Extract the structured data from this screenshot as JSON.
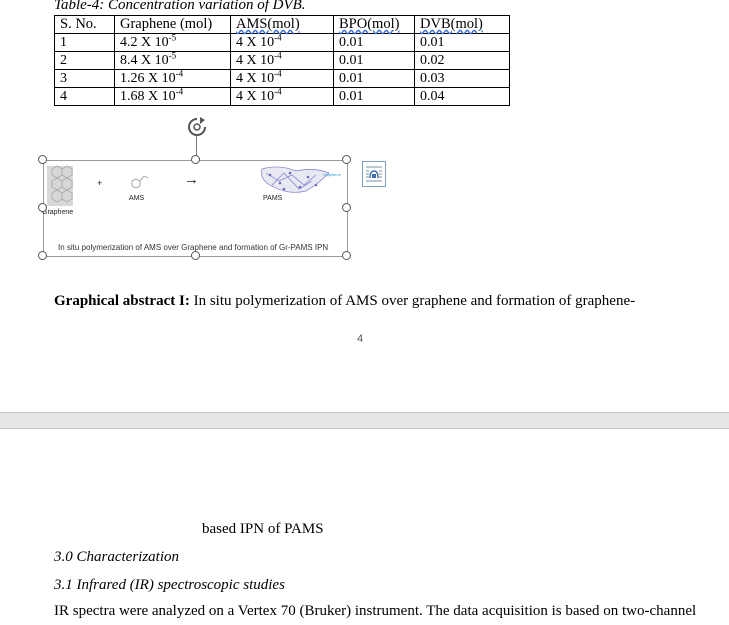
{
  "table": {
    "caption": "Table-4: Concentration variation of DVB.",
    "headers": [
      "S. No.",
      "Graphene (mol)",
      "AMS(mol)",
      "BPO(mol)",
      "DVB(mol)"
    ],
    "rows": [
      {
        "sno": "1",
        "graphene_base": "4.2 X 10",
        "graphene_exp": "-5",
        "ams_base": "4 X 10",
        "ams_exp": "-4",
        "bpo": "0.01",
        "dvb": "0.01"
      },
      {
        "sno": "2",
        "graphene_base": "8.4 X 10",
        "graphene_exp": "-5",
        "ams_base": "4 X 10",
        "ams_exp": "-4",
        "bpo": "0.01",
        "dvb": "0.02"
      },
      {
        "sno": "3",
        "graphene_base": "1.26 X 10",
        "graphene_exp": "-4",
        "ams_base": "4 X 10",
        "ams_exp": "-4",
        "bpo": "0.01",
        "dvb": "0.03"
      },
      {
        "sno": "4",
        "graphene_base": "1.68 X 10",
        "graphene_exp": "-4",
        "ams_base": "4 X 10",
        "ams_exp": "-4",
        "bpo": "0.01",
        "dvb": "0.04"
      }
    ]
  },
  "graphic": {
    "plus": "+",
    "arrow": "→",
    "label_graphene": "Graphene",
    "label_ams": "AMS",
    "label_pams": "PAMS",
    "label_graphene_small": "Graphene",
    "caption": "In situ polymerization of AMS over Graphene and formation of Gr-PAMS IPN"
  },
  "abstract": {
    "label": "Graphical abstract I:",
    "text_line1": " In situ polymerization of AMS over graphene and formation of graphene-",
    "text_line2": "based IPN of PAMS"
  },
  "page_number": "4",
  "sections": {
    "characterization": "3.0 Characterization",
    "ir": "3.1 Infrared (IR) spectroscopic studies",
    "ir_text": "IR spectra were analyzed on a Vertex 70 (Bruker) instrument. The data acquisition is based on two-channel"
  },
  "colors": {
    "gap": "#e6e6e6",
    "selection": "#555555",
    "layout_button": "#7aa0c8"
  }
}
